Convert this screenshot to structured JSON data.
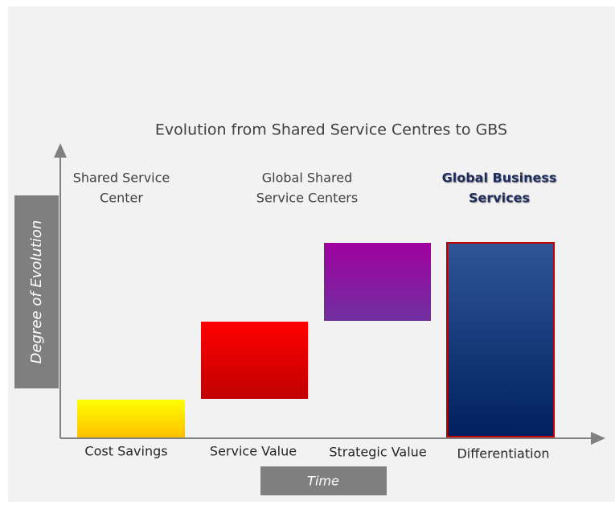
{
  "title": "Evolution from Shared Service Centres to GBS",
  "y_axis_label": "Degree of Evolution",
  "x_axis_label": "Time",
  "stages": [
    {
      "label_lines": [
        "Shared Service",
        "Center"
      ],
      "value_label": "Cost Savings"
    },
    {
      "label_lines": [
        "Global Shared",
        "Service Centers"
      ],
      "value_label": "Service Value"
    },
    {
      "label_lines": [],
      "value_label": "Strategic Value"
    },
    {
      "label_lines": [
        "Global Business",
        "Services"
      ],
      "value_label": "Differentiation"
    }
  ]
}
